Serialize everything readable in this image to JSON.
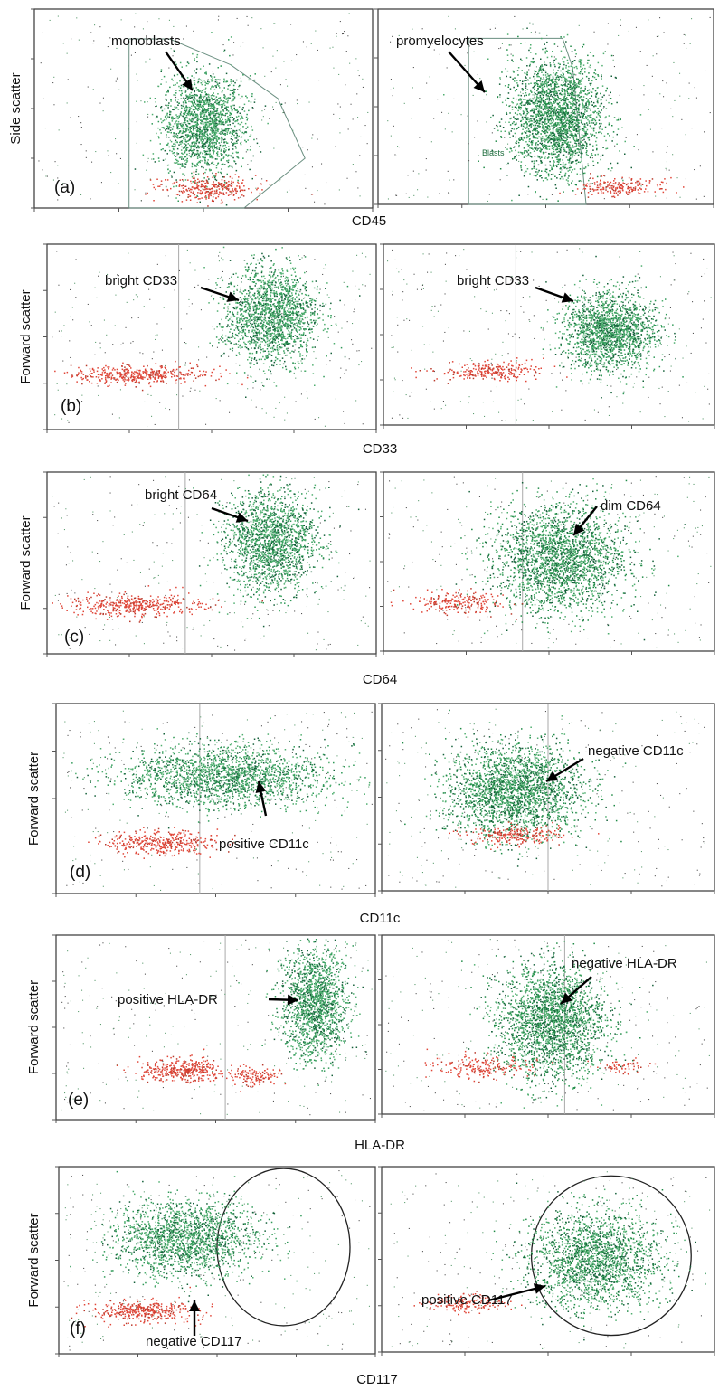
{
  "chart_data": [
    {
      "type": "scatter",
      "panel": "(a)",
      "ylabel": "Side scatter",
      "xlabel": "CD45",
      "plots": [
        {
          "annotation": "monoblasts",
          "gate_label": "",
          "populations": [
            {
              "color": "#2f9a58",
              "cx": 0.5,
              "cy": 0.42,
              "n": 1800
            },
            {
              "color": "#e04638",
              "cx": 0.52,
              "cy": 0.1,
              "n": 300
            }
          ]
        },
        {
          "annotation": "promyelocytes",
          "gate_label": "Blasts",
          "populations": [
            {
              "color": "#1f8a46",
              "cx": 0.53,
              "cy": 0.45,
              "n": 2400
            },
            {
              "color": "#e04638",
              "cx": 0.72,
              "cy": 0.09,
              "n": 200
            }
          ]
        }
      ]
    },
    {
      "type": "scatter",
      "panel": "(b)",
      "ylabel": "Forward scatter",
      "xlabel": "CD33",
      "plots": [
        {
          "annotation": "bright CD33",
          "populations": [
            {
              "color": "#2f9a58",
              "cx": 0.68,
              "cy": 0.62,
              "n": 1800
            },
            {
              "color": "#e04638",
              "cx": 0.28,
              "cy": 0.3,
              "n": 420
            }
          ]
        },
        {
          "annotation": "bright CD33",
          "populations": [
            {
              "color": "#2f9a58",
              "cx": 0.68,
              "cy": 0.52,
              "n": 1800
            },
            {
              "color": "#e04638",
              "cx": 0.32,
              "cy": 0.3,
              "n": 260
            }
          ]
        }
      ]
    },
    {
      "type": "scatter",
      "panel": "(c)",
      "ylabel": "Forward scatter",
      "xlabel": "CD64",
      "plots": [
        {
          "annotation": "bright CD64",
          "populations": [
            {
              "color": "#2f9a58",
              "cx": 0.68,
              "cy": 0.62,
              "n": 1800
            },
            {
              "color": "#e04638",
              "cx": 0.27,
              "cy": 0.27,
              "n": 420
            }
          ]
        },
        {
          "annotation": "dim CD64",
          "populations": [
            {
              "color": "#1f8a46",
              "cx": 0.53,
              "cy": 0.52,
              "n": 2400
            },
            {
              "color": "#e04638",
              "cx": 0.22,
              "cy": 0.27,
              "n": 220
            }
          ]
        }
      ]
    },
    {
      "type": "scatter",
      "panel": "(d)",
      "ylabel": "Forward scatter",
      "xlabel": "CD11c",
      "plots": [
        {
          "annotation": "positive CD11c",
          "populations": [
            {
              "color": "#2f9a58",
              "cx": 0.53,
              "cy": 0.62,
              "n": 2000
            },
            {
              "color": "#e04638",
              "cx": 0.33,
              "cy": 0.27,
              "n": 380
            }
          ]
        },
        {
          "annotation": "negative CD11c",
          "populations": [
            {
              "color": "#1f8a46",
              "cx": 0.4,
              "cy": 0.54,
              "n": 2400
            },
            {
              "color": "#e04638",
              "cx": 0.4,
              "cy": 0.3,
              "n": 220
            }
          ]
        }
      ]
    },
    {
      "type": "scatter",
      "panel": "(e)",
      "ylabel": "Forward scatter",
      "xlabel": "HLA-DR",
      "plots": [
        {
          "annotation": "positive HLA-DR",
          "populations": [
            {
              "color": "#2f9a58",
              "cx": 0.81,
              "cy": 0.63,
              "n": 1600
            },
            {
              "color": "#e04638",
              "cx": 0.4,
              "cy": 0.27,
              "n": 380
            },
            {
              "color": "#e04638",
              "cx": 0.62,
              "cy": 0.24,
              "n": 120
            }
          ]
        },
        {
          "annotation": "negative HLA-DR",
          "populations": [
            {
              "color": "#1f8a46",
              "cx": 0.51,
              "cy": 0.52,
              "n": 2400
            },
            {
              "color": "#e04638",
              "cx": 0.3,
              "cy": 0.27,
              "n": 200
            },
            {
              "color": "#e04638",
              "cx": 0.72,
              "cy": 0.27,
              "n": 60
            }
          ]
        }
      ]
    },
    {
      "type": "scatter",
      "panel": "(f)",
      "ylabel": "Forward scatter",
      "xlabel": "CD117",
      "plots": [
        {
          "annotation": "negative CD117",
          "populations": [
            {
              "color": "#2f9a58",
              "cx": 0.4,
              "cy": 0.62,
              "n": 1800
            },
            {
              "color": "#e04638",
              "cx": 0.26,
              "cy": 0.23,
              "n": 360
            }
          ]
        },
        {
          "annotation": "positive CD117",
          "populations": [
            {
              "color": "#1f8a46",
              "cx": 0.64,
              "cy": 0.5,
              "n": 2000
            },
            {
              "color": "#e04638",
              "cx": 0.25,
              "cy": 0.27,
              "n": 160
            }
          ]
        }
      ]
    }
  ]
}
